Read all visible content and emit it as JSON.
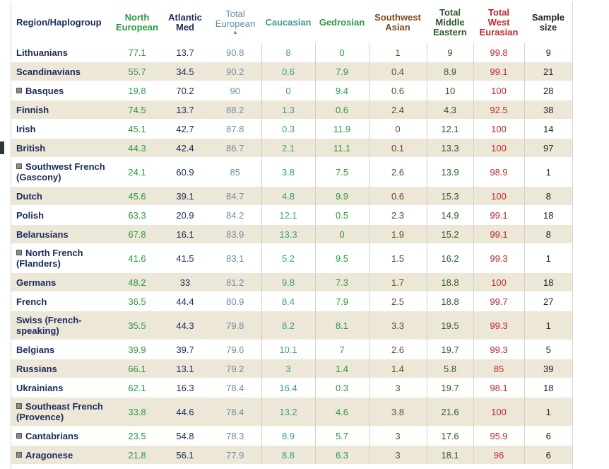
{
  "headers": {
    "region": "Region/Haplogroup",
    "north_european": [
      "North",
      "European"
    ],
    "atlantic_med": [
      "Atlantic",
      "Med"
    ],
    "total_european": [
      "Total",
      "European"
    ],
    "sort_indicator": "▲",
    "caucasian": [
      "Caucasian"
    ],
    "gedrosian": [
      "Gedrosian"
    ],
    "southwest_asian": [
      "Southwest",
      "Asian"
    ],
    "total_middle_eastern": [
      "Total",
      "Middle",
      "Eastern"
    ],
    "total_west_eurasian": [
      "Total",
      "West",
      "Eurasian"
    ],
    "sample_size": [
      "Sample",
      "size"
    ]
  },
  "colors": {
    "header_navy": "#1c2c5a",
    "green": "#2a9a3f",
    "teal": "#3a9e8c",
    "steel": "#5f8cac",
    "brown": "#7a4a1a",
    "red": "#c0282d",
    "stripe": "#ede7d8"
  },
  "rows": [
    {
      "region": "Lithuanians",
      "flag": false,
      "tall": false,
      "ne": "77.1",
      "am": "13.7",
      "te": "90.8",
      "ca": "8",
      "ge": "0",
      "sw": "1",
      "tme": "9",
      "twe": "99.8",
      "ss": "9"
    },
    {
      "region": "Scandinavians",
      "flag": false,
      "tall": false,
      "ne": "55.7",
      "am": "34.5",
      "te": "90.2",
      "ca": "0.6",
      "ge": "7.9",
      "sw": "0.4",
      "tme": "8.9",
      "twe": "99.1",
      "ss": "21"
    },
    {
      "region": "Basques",
      "flag": true,
      "tall": false,
      "ne": "19.8",
      "am": "70.2",
      "te": "90",
      "ca": "0",
      "ge": "9.4",
      "sw": "0.6",
      "tme": "10",
      "twe": "100",
      "ss": "28"
    },
    {
      "region": "Finnish",
      "flag": false,
      "tall": false,
      "ne": "74.5",
      "am": "13.7",
      "te": "88.2",
      "ca": "1.3",
      "ge": "0.6",
      "sw": "2.4",
      "tme": "4.3",
      "twe": "92.5",
      "ss": "38"
    },
    {
      "region": "Irish",
      "flag": false,
      "tall": false,
      "ne": "45.1",
      "am": "42.7",
      "te": "87.8",
      "ca": "0.3",
      "ge": "11.9",
      "sw": "0",
      "tme": "12.1",
      "twe": "100",
      "ss": "14"
    },
    {
      "region": "British",
      "flag": false,
      "tall": false,
      "ne": "44.3",
      "am": "42.4",
      "te": "86.7",
      "ca": "2.1",
      "ge": "11.1",
      "sw": "0.1",
      "tme": "13.3",
      "twe": "100",
      "ss": "97"
    },
    {
      "region": "Southwest French (Gascony)",
      "flag": true,
      "tall": true,
      "ne": "24.1",
      "am": "60.9",
      "te": "85",
      "ca": "3.8",
      "ge": "7.5",
      "sw": "2.6",
      "tme": "13.9",
      "twe": "98.9",
      "ss": "1"
    },
    {
      "region": "Dutch",
      "flag": false,
      "tall": false,
      "ne": "45.6",
      "am": "39.1",
      "te": "84.7",
      "ca": "4.8",
      "ge": "9.9",
      "sw": "0.6",
      "tme": "15.3",
      "twe": "100",
      "ss": "8"
    },
    {
      "region": "Polish",
      "flag": false,
      "tall": false,
      "ne": "63.3",
      "am": "20.9",
      "te": "84.2",
      "ca": "12.1",
      "ge": "0.5",
      "sw": "2.3",
      "tme": "14.9",
      "twe": "99.1",
      "ss": "18"
    },
    {
      "region": "Belarusians",
      "flag": false,
      "tall": false,
      "ne": "67.8",
      "am": "16.1",
      "te": "83.9",
      "ca": "13.3",
      "ge": "0",
      "sw": "1.9",
      "tme": "15.2",
      "twe": "99.1",
      "ss": "8"
    },
    {
      "region": "North French (Flanders)",
      "flag": true,
      "tall": true,
      "ne": "41.6",
      "am": "41.5",
      "te": "83.1",
      "ca": "5.2",
      "ge": "9.5",
      "sw": "1.5",
      "tme": "16.2",
      "twe": "99.3",
      "ss": "1"
    },
    {
      "region": "Germans",
      "flag": false,
      "tall": false,
      "ne": "48.2",
      "am": "33",
      "te": "81.2",
      "ca": "9.8",
      "ge": "7.3",
      "sw": "1.7",
      "tme": "18.8",
      "twe": "100",
      "ss": "18"
    },
    {
      "region": "French",
      "flag": false,
      "tall": false,
      "ne": "36.5",
      "am": "44.4",
      "te": "80.9",
      "ca": "8.4",
      "ge": "7.9",
      "sw": "2.5",
      "tme": "18.8",
      "twe": "99.7",
      "ss": "27"
    },
    {
      "region": "Swiss (French-speaking)",
      "flag": false,
      "tall": true,
      "ne": "35.5",
      "am": "44.3",
      "te": "79.8",
      "ca": "8.2",
      "ge": "8.1",
      "sw": "3.3",
      "tme": "19.5",
      "twe": "99.3",
      "ss": "1"
    },
    {
      "region": "Belgians",
      "flag": false,
      "tall": false,
      "ne": "39.9",
      "am": "39.7",
      "te": "79.6",
      "ca": "10.1",
      "ge": "7",
      "sw": "2.6",
      "tme": "19.7",
      "twe": "99.3",
      "ss": "5"
    },
    {
      "region": "Russians",
      "flag": false,
      "tall": false,
      "ne": "66.1",
      "am": "13.1",
      "te": "79.2",
      "ca": "3",
      "ge": "1.4",
      "sw": "1.4",
      "tme": "5.8",
      "twe": "85",
      "ss": "39"
    },
    {
      "region": "Ukrainians",
      "flag": false,
      "tall": false,
      "ne": "62.1",
      "am": "16.3",
      "te": "78.4",
      "ca": "16.4",
      "ge": "0.3",
      "sw": "3",
      "tme": "19.7",
      "twe": "98.1",
      "ss": "18"
    },
    {
      "region": "Southeast French (Provence)",
      "flag": true,
      "tall": true,
      "ne": "33.8",
      "am": "44.6",
      "te": "78.4",
      "ca": "13.2",
      "ge": "4.6",
      "sw": "3.8",
      "tme": "21.6",
      "twe": "100",
      "ss": "1"
    },
    {
      "region": "Cantabrians",
      "flag": true,
      "tall": false,
      "ne": "23.5",
      "am": "54.8",
      "te": "78.3",
      "ca": "8.9",
      "ge": "5.7",
      "sw": "3",
      "tme": "17.6",
      "twe": "95.9",
      "ss": "6"
    },
    {
      "region": "Aragonese",
      "flag": true,
      "tall": false,
      "ne": "21.8",
      "am": "56.1",
      "te": "77.9",
      "ca": "8.8",
      "ge": "6.3",
      "sw": "3",
      "tme": "18.1",
      "twe": "96",
      "ss": "6"
    }
  ]
}
